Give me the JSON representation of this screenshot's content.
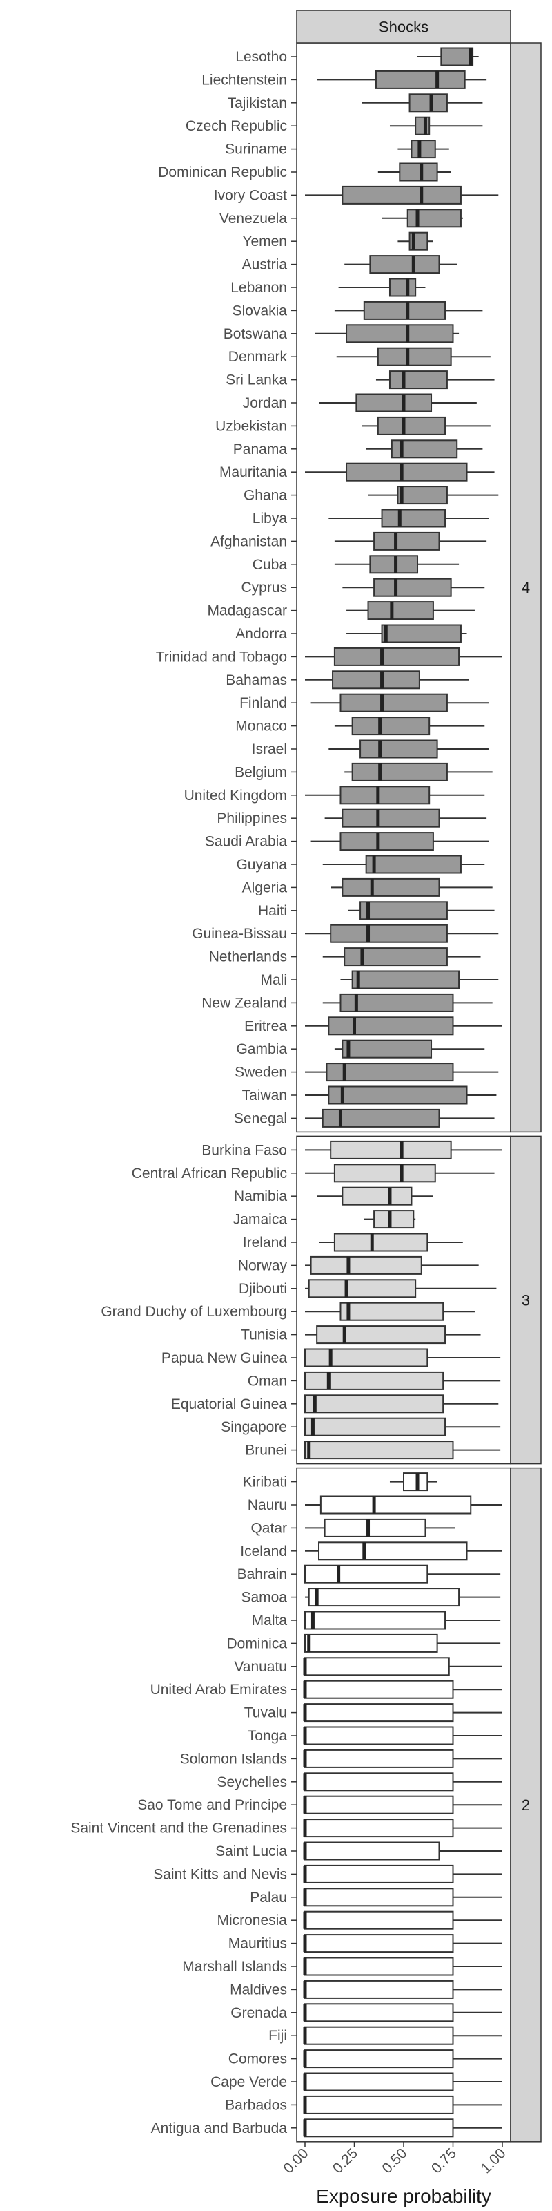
{
  "chart_data": {
    "type": "boxplot",
    "title": "",
    "facet_label": "Shocks",
    "xlabel": "Exposure probability",
    "ylabel": "",
    "xlim": [
      0,
      1
    ],
    "x_ticks": [
      "0.00",
      "0.25",
      "0.50",
      "0.75",
      "1.00"
    ],
    "grid": true,
    "colors": {
      "group_4": "#999999",
      "group_3": "#d9d9d9",
      "group_2": "#ffffff",
      "strip": "#d3d3d3",
      "panel_border": "#333333",
      "grid": "#ebebeb"
    },
    "groups": [
      {
        "label": "4",
        "fill": "#999999",
        "countries": [
          {
            "name": "Lesotho",
            "wmin": 0.57,
            "q1": 0.69,
            "med": 0.84,
            "q3": 0.85,
            "wmax": 0.88
          },
          {
            "name": "Liechtenstein",
            "wmin": 0.06,
            "q1": 0.36,
            "med": 0.67,
            "q3": 0.81,
            "wmax": 0.92
          },
          {
            "name": "Tajikistan",
            "wmin": 0.29,
            "q1": 0.53,
            "med": 0.64,
            "q3": 0.72,
            "wmax": 0.9
          },
          {
            "name": "Czech Republic",
            "wmin": 0.43,
            "q1": 0.56,
            "med": 0.61,
            "q3": 0.63,
            "wmax": 0.9
          },
          {
            "name": "Suriname",
            "wmin": 0.47,
            "q1": 0.54,
            "med": 0.58,
            "q3": 0.66,
            "wmax": 0.73
          },
          {
            "name": "Dominican Republic",
            "wmin": 0.37,
            "q1": 0.48,
            "med": 0.59,
            "q3": 0.67,
            "wmax": 0.74
          },
          {
            "name": "Ivory Coast",
            "wmin": 0.0,
            "q1": 0.19,
            "med": 0.59,
            "q3": 0.79,
            "wmax": 0.98
          },
          {
            "name": "Venezuela",
            "wmin": 0.39,
            "q1": 0.52,
            "med": 0.57,
            "q3": 0.79,
            "wmax": 0.8
          },
          {
            "name": "Yemen",
            "wmin": 0.47,
            "q1": 0.53,
            "med": 0.55,
            "q3": 0.62,
            "wmax": 0.65
          },
          {
            "name": "Austria",
            "wmin": 0.2,
            "q1": 0.33,
            "med": 0.55,
            "q3": 0.68,
            "wmax": 0.77
          },
          {
            "name": "Lebanon",
            "wmin": 0.17,
            "q1": 0.43,
            "med": 0.52,
            "q3": 0.56,
            "wmax": 0.61
          },
          {
            "name": "Slovakia",
            "wmin": 0.15,
            "q1": 0.3,
            "med": 0.52,
            "q3": 0.71,
            "wmax": 0.9
          },
          {
            "name": "Botswana",
            "wmin": 0.05,
            "q1": 0.21,
            "med": 0.52,
            "q3": 0.75,
            "wmax": 0.78
          },
          {
            "name": "Denmark",
            "wmin": 0.16,
            "q1": 0.37,
            "med": 0.52,
            "q3": 0.74,
            "wmax": 0.94
          },
          {
            "name": "Sri Lanka",
            "wmin": 0.36,
            "q1": 0.43,
            "med": 0.5,
            "q3": 0.72,
            "wmax": 0.96
          },
          {
            "name": "Jordan",
            "wmin": 0.07,
            "q1": 0.26,
            "med": 0.5,
            "q3": 0.64,
            "wmax": 0.87
          },
          {
            "name": "Uzbekistan",
            "wmin": 0.29,
            "q1": 0.37,
            "med": 0.5,
            "q3": 0.71,
            "wmax": 0.94
          },
          {
            "name": "Panama",
            "wmin": 0.31,
            "q1": 0.44,
            "med": 0.49,
            "q3": 0.77,
            "wmax": 0.9
          },
          {
            "name": "Mauritania",
            "wmin": 0.0,
            "q1": 0.21,
            "med": 0.49,
            "q3": 0.82,
            "wmax": 0.96
          },
          {
            "name": "Ghana",
            "wmin": 0.32,
            "q1": 0.47,
            "med": 0.49,
            "q3": 0.72,
            "wmax": 0.98
          },
          {
            "name": "Libya",
            "wmin": 0.12,
            "q1": 0.39,
            "med": 0.48,
            "q3": 0.71,
            "wmax": 0.93
          },
          {
            "name": "Afghanistan",
            "wmin": 0.15,
            "q1": 0.35,
            "med": 0.46,
            "q3": 0.68,
            "wmax": 0.92
          },
          {
            "name": "Cuba",
            "wmin": 0.15,
            "q1": 0.33,
            "med": 0.46,
            "q3": 0.57,
            "wmax": 0.78
          },
          {
            "name": "Cyprus",
            "wmin": 0.19,
            "q1": 0.35,
            "med": 0.46,
            "q3": 0.74,
            "wmax": 0.91
          },
          {
            "name": "Madagascar",
            "wmin": 0.21,
            "q1": 0.32,
            "med": 0.44,
            "q3": 0.65,
            "wmax": 0.86
          },
          {
            "name": "Andorra",
            "wmin": 0.21,
            "q1": 0.39,
            "med": 0.41,
            "q3": 0.79,
            "wmax": 0.82
          },
          {
            "name": "Trinidad and Tobago",
            "wmin": 0.0,
            "q1": 0.15,
            "med": 0.39,
            "q3": 0.78,
            "wmax": 1.0
          },
          {
            "name": "Bahamas",
            "wmin": 0.0,
            "q1": 0.14,
            "med": 0.39,
            "q3": 0.58,
            "wmax": 0.83
          },
          {
            "name": "Finland",
            "wmin": 0.03,
            "q1": 0.18,
            "med": 0.39,
            "q3": 0.72,
            "wmax": 0.93
          },
          {
            "name": "Monaco",
            "wmin": 0.15,
            "q1": 0.24,
            "med": 0.38,
            "q3": 0.63,
            "wmax": 0.91
          },
          {
            "name": "Israel",
            "wmin": 0.12,
            "q1": 0.28,
            "med": 0.38,
            "q3": 0.67,
            "wmax": 0.93
          },
          {
            "name": "Belgium",
            "wmin": 0.2,
            "q1": 0.24,
            "med": 0.38,
            "q3": 0.72,
            "wmax": 0.95
          },
          {
            "name": "United Kingdom",
            "wmin": 0.0,
            "q1": 0.18,
            "med": 0.37,
            "q3": 0.63,
            "wmax": 0.91
          },
          {
            "name": "Philippines",
            "wmin": 0.1,
            "q1": 0.19,
            "med": 0.37,
            "q3": 0.68,
            "wmax": 0.92
          },
          {
            "name": "Saudi Arabia",
            "wmin": 0.03,
            "q1": 0.18,
            "med": 0.37,
            "q3": 0.65,
            "wmax": 0.93
          },
          {
            "name": "Guyana",
            "wmin": 0.09,
            "q1": 0.31,
            "med": 0.35,
            "q3": 0.79,
            "wmax": 0.91
          },
          {
            "name": "Algeria",
            "wmin": 0.13,
            "q1": 0.19,
            "med": 0.34,
            "q3": 0.68,
            "wmax": 0.95
          },
          {
            "name": "Haiti",
            "wmin": 0.22,
            "q1": 0.28,
            "med": 0.32,
            "q3": 0.72,
            "wmax": 0.96
          },
          {
            "name": "Guinea-Bissau",
            "wmin": 0.0,
            "q1": 0.13,
            "med": 0.32,
            "q3": 0.72,
            "wmax": 0.98
          },
          {
            "name": "Netherlands",
            "wmin": 0.09,
            "q1": 0.2,
            "med": 0.29,
            "q3": 0.72,
            "wmax": 0.89
          },
          {
            "name": "Mali",
            "wmin": 0.18,
            "q1": 0.24,
            "med": 0.27,
            "q3": 0.78,
            "wmax": 0.98
          },
          {
            "name": "New Zealand",
            "wmin": 0.09,
            "q1": 0.18,
            "med": 0.26,
            "q3": 0.75,
            "wmax": 0.95
          },
          {
            "name": "Eritrea",
            "wmin": 0.0,
            "q1": 0.12,
            "med": 0.25,
            "q3": 0.75,
            "wmax": 1.0
          },
          {
            "name": "Gambia",
            "wmin": 0.15,
            "q1": 0.19,
            "med": 0.22,
            "q3": 0.64,
            "wmax": 0.91
          },
          {
            "name": "Sweden",
            "wmin": 0.0,
            "q1": 0.11,
            "med": 0.2,
            "q3": 0.75,
            "wmax": 0.98
          },
          {
            "name": "Taiwan",
            "wmin": 0.0,
            "q1": 0.12,
            "med": 0.19,
            "q3": 0.82,
            "wmax": 0.97
          },
          {
            "name": "Senegal",
            "wmin": 0.0,
            "q1": 0.09,
            "med": 0.18,
            "q3": 0.68,
            "wmax": 0.96
          }
        ]
      },
      {
        "label": "3",
        "fill": "#d9d9d9",
        "countries": [
          {
            "name": "Burkina Faso",
            "wmin": 0.0,
            "q1": 0.13,
            "med": 0.49,
            "q3": 0.74,
            "wmax": 1.0
          },
          {
            "name": "Central African Republic",
            "wmin": 0.0,
            "q1": 0.15,
            "med": 0.49,
            "q3": 0.66,
            "wmax": 0.96
          },
          {
            "name": "Namibia",
            "wmin": 0.06,
            "q1": 0.19,
            "med": 0.43,
            "q3": 0.54,
            "wmax": 0.65
          },
          {
            "name": "Jamaica",
            "wmin": 0.3,
            "q1": 0.35,
            "med": 0.43,
            "q3": 0.55,
            "wmax": 0.56
          },
          {
            "name": "Ireland",
            "wmin": 0.07,
            "q1": 0.15,
            "med": 0.34,
            "q3": 0.62,
            "wmax": 0.8
          },
          {
            "name": "Norway",
            "wmin": 0.0,
            "q1": 0.03,
            "med": 0.22,
            "q3": 0.59,
            "wmax": 0.88
          },
          {
            "name": "Djibouti",
            "wmin": 0.0,
            "q1": 0.02,
            "med": 0.21,
            "q3": 0.56,
            "wmax": 0.97
          },
          {
            "name": "Grand Duchy of Luxembourg",
            "wmin": 0.0,
            "q1": 0.18,
            "med": 0.22,
            "q3": 0.7,
            "wmax": 0.86
          },
          {
            "name": "Tunisia",
            "wmin": 0.0,
            "q1": 0.06,
            "med": 0.2,
            "q3": 0.71,
            "wmax": 0.89
          },
          {
            "name": "Papua New Guinea",
            "wmin": 0.0,
            "q1": 0.0,
            "med": 0.13,
            "q3": 0.62,
            "wmax": 0.99
          },
          {
            "name": "Oman",
            "wmin": 0.0,
            "q1": 0.0,
            "med": 0.12,
            "q3": 0.7,
            "wmax": 0.99
          },
          {
            "name": "Equatorial Guinea",
            "wmin": 0.0,
            "q1": 0.0,
            "med": 0.05,
            "q3": 0.7,
            "wmax": 0.98
          },
          {
            "name": "Singapore",
            "wmin": 0.0,
            "q1": 0.0,
            "med": 0.04,
            "q3": 0.71,
            "wmax": 0.99
          },
          {
            "name": "Brunei",
            "wmin": 0.0,
            "q1": 0.0,
            "med": 0.02,
            "q3": 0.75,
            "wmax": 0.99
          }
        ]
      },
      {
        "label": "2",
        "fill": "#ffffff",
        "countries": [
          {
            "name": "Kiribati",
            "wmin": 0.43,
            "q1": 0.5,
            "med": 0.57,
            "q3": 0.62,
            "wmax": 0.67
          },
          {
            "name": "Nauru",
            "wmin": 0.0,
            "q1": 0.08,
            "med": 0.35,
            "q3": 0.84,
            "wmax": 1.0
          },
          {
            "name": "Qatar",
            "wmin": 0.0,
            "q1": 0.1,
            "med": 0.32,
            "q3": 0.61,
            "wmax": 0.76
          },
          {
            "name": "Iceland",
            "wmin": 0.0,
            "q1": 0.07,
            "med": 0.3,
            "q3": 0.82,
            "wmax": 1.0
          },
          {
            "name": "Bahrain",
            "wmin": 0.0,
            "q1": 0.0,
            "med": 0.17,
            "q3": 0.62,
            "wmax": 0.99
          },
          {
            "name": "Samoa",
            "wmin": 0.0,
            "q1": 0.02,
            "med": 0.06,
            "q3": 0.78,
            "wmax": 0.99
          },
          {
            "name": "Malta",
            "wmin": 0.0,
            "q1": 0.0,
            "med": 0.04,
            "q3": 0.71,
            "wmax": 0.99
          },
          {
            "name": "Dominica",
            "wmin": 0.0,
            "q1": 0.0,
            "med": 0.02,
            "q3": 0.67,
            "wmax": 0.99
          },
          {
            "name": "Vanuatu",
            "wmin": 0.0,
            "q1": 0.0,
            "med": 0.0,
            "q3": 0.73,
            "wmax": 1.0
          },
          {
            "name": "United Arab Emirates",
            "wmin": 0.0,
            "q1": 0.0,
            "med": 0.0,
            "q3": 0.75,
            "wmax": 1.0
          },
          {
            "name": "Tuvalu",
            "wmin": 0.0,
            "q1": 0.0,
            "med": 0.0,
            "q3": 0.75,
            "wmax": 1.0
          },
          {
            "name": "Tonga",
            "wmin": 0.0,
            "q1": 0.0,
            "med": 0.0,
            "q3": 0.75,
            "wmax": 1.0
          },
          {
            "name": "Solomon Islands",
            "wmin": 0.0,
            "q1": 0.0,
            "med": 0.0,
            "q3": 0.75,
            "wmax": 1.0
          },
          {
            "name": "Seychelles",
            "wmin": 0.0,
            "q1": 0.0,
            "med": 0.0,
            "q3": 0.75,
            "wmax": 1.0
          },
          {
            "name": "Sao Tome and Principe",
            "wmin": 0.0,
            "q1": 0.0,
            "med": 0.0,
            "q3": 0.75,
            "wmax": 1.0
          },
          {
            "name": "Saint Vincent and the Grenadines",
            "wmin": 0.0,
            "q1": 0.0,
            "med": 0.0,
            "q3": 0.75,
            "wmax": 1.0
          },
          {
            "name": "Saint Lucia",
            "wmin": 0.0,
            "q1": 0.0,
            "med": 0.0,
            "q3": 0.68,
            "wmax": 1.0
          },
          {
            "name": "Saint Kitts and Nevis",
            "wmin": 0.0,
            "q1": 0.0,
            "med": 0.0,
            "q3": 0.75,
            "wmax": 1.0
          },
          {
            "name": "Palau",
            "wmin": 0.0,
            "q1": 0.0,
            "med": 0.0,
            "q3": 0.75,
            "wmax": 1.0
          },
          {
            "name": "Micronesia",
            "wmin": 0.0,
            "q1": 0.0,
            "med": 0.0,
            "q3": 0.75,
            "wmax": 1.0
          },
          {
            "name": "Mauritius",
            "wmin": 0.0,
            "q1": 0.0,
            "med": 0.0,
            "q3": 0.75,
            "wmax": 1.0
          },
          {
            "name": "Marshall Islands",
            "wmin": 0.0,
            "q1": 0.0,
            "med": 0.0,
            "q3": 0.75,
            "wmax": 1.0
          },
          {
            "name": "Maldives",
            "wmin": 0.0,
            "q1": 0.0,
            "med": 0.0,
            "q3": 0.75,
            "wmax": 1.0
          },
          {
            "name": "Grenada",
            "wmin": 0.0,
            "q1": 0.0,
            "med": 0.0,
            "q3": 0.75,
            "wmax": 1.0
          },
          {
            "name": "Fiji",
            "wmin": 0.0,
            "q1": 0.0,
            "med": 0.0,
            "q3": 0.75,
            "wmax": 1.0
          },
          {
            "name": "Comores",
            "wmin": 0.0,
            "q1": 0.0,
            "med": 0.0,
            "q3": 0.75,
            "wmax": 1.0
          },
          {
            "name": "Cape Verde",
            "wmin": 0.0,
            "q1": 0.0,
            "med": 0.0,
            "q3": 0.75,
            "wmax": 1.0
          },
          {
            "name": "Barbados",
            "wmin": 0.0,
            "q1": 0.0,
            "med": 0.0,
            "q3": 0.75,
            "wmax": 1.0
          },
          {
            "name": "Antigua and Barbuda",
            "wmin": 0.0,
            "q1": 0.0,
            "med": 0.0,
            "q3": 0.75,
            "wmax": 1.0
          }
        ]
      }
    ]
  }
}
